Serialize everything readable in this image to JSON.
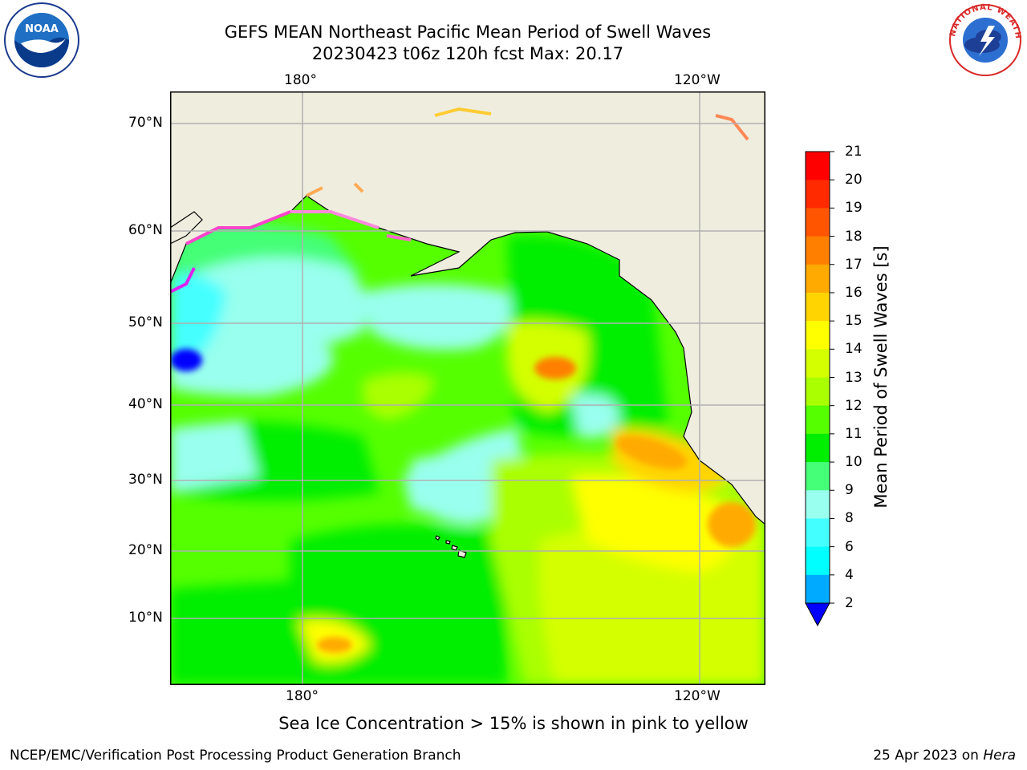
{
  "title": {
    "line1": "GEFS MEAN Northeast Pacific Mean Period of Swell Waves",
    "line2": "20230423 t06z 120h fcst   Max: 20.17"
  },
  "axes": {
    "lon_labels": [
      "180°",
      "120°W"
    ],
    "lat_labels": [
      "70°N",
      "60°N",
      "50°N",
      "40°N",
      "30°N",
      "20°N",
      "10°N"
    ]
  },
  "colorbar": {
    "title": "Mean Period of Swell Waves [s]",
    "ticks": [
      "21",
      "20",
      "19",
      "18",
      "17",
      "16",
      "15",
      "14",
      "13",
      "12",
      "11",
      "10",
      "9",
      "8",
      "6",
      "4",
      "2"
    ],
    "colors": [
      "#ff0000",
      "#ff2a00",
      "#ff5500",
      "#ff7f00",
      "#ffaa00",
      "#ffd400",
      "#ffff00",
      "#d4ff00",
      "#aaff00",
      "#55ff00",
      "#00ee00",
      "#44ff77",
      "#99ffee",
      "#44ffff",
      "#00ffff",
      "#00aaff",
      "#0000ff"
    ]
  },
  "legend_note": "Sea Ice Concentration > 15% is shown in pink to yellow",
  "footer": {
    "left": "NCEP/EMC/Verification Post Processing Product Generation Branch",
    "date": "25 Apr 2023 on ",
    "host": "Hera"
  },
  "logos": {
    "noaa_text": "NOAA",
    "nws_ring_text": "NATIONAL WEATHER SERVICE"
  }
}
